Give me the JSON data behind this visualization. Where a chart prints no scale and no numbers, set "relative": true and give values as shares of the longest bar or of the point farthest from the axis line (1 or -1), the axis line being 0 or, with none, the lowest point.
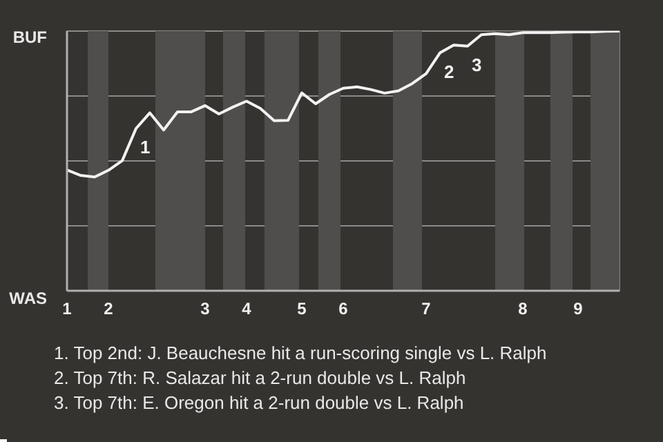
{
  "chart_data": {
    "type": "line",
    "relative": true,
    "categories": [
      "1",
      null,
      null,
      "2",
      null,
      null,
      null,
      null,
      null,
      null,
      "3",
      null,
      null,
      "4",
      null,
      null,
      null,
      "5",
      null,
      null,
      "6",
      null,
      null,
      null,
      null,
      null,
      "7",
      null,
      null,
      null,
      null,
      null,
      null,
      "8",
      null,
      null,
      null,
      "9",
      null,
      null,
      null
    ],
    "series": [
      {
        "color": "#f2f2f2",
        "values": [
          0.465,
          0.444,
          0.438,
          0.464,
          0.501,
          0.625,
          0.685,
          0.619,
          0.689,
          0.689,
          0.713,
          0.681,
          0.707,
          0.73,
          0.702,
          0.655,
          0.656,
          0.762,
          0.72,
          0.756,
          0.78,
          0.785,
          0.775,
          0.761,
          0.77,
          0.798,
          0.836,
          0.916,
          0.946,
          0.942,
          0.986,
          0.99,
          0.986,
          0.994,
          0.994,
          0.994,
          0.996,
          0.997,
          0.997,
          0.999,
          1.0
        ]
      }
    ],
    "grid": "y",
    "marker": "none",
    "line_style": "solid",
    "annotations": [
      "BUF",
      "WAS",
      {
        "text": "1",
        "y": 0.625
      },
      {
        "text": "2",
        "y": 0.916
      },
      {
        "text": "3",
        "y": 0.942
      },
      "1. Top 2nd: J. Beauchesne hit a run-scoring single vs L. Ralph",
      "2. Top 7th: R. Salazar hit a 2-run double vs L. Ralph",
      "3. Top 7th: E. Oregon hit a 2-run double vs L. Ralph"
    ]
  }
}
